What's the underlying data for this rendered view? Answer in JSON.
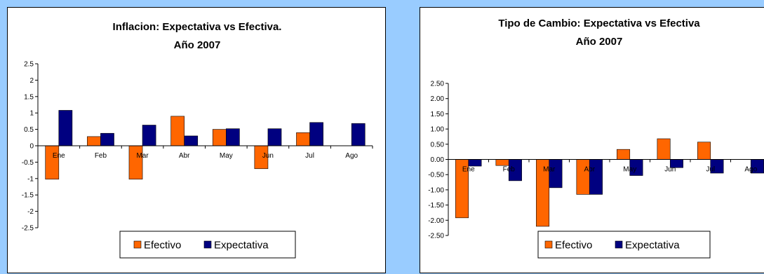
{
  "chart_data": [
    {
      "type": "bar",
      "title": "Inflacion: Expectativa vs Efectiva.",
      "subtitle": "Año 2007",
      "categories": [
        "Ene",
        "Feb",
        "Mar",
        "Abr",
        "May",
        "Jun",
        "Jul",
        "Ago"
      ],
      "series": [
        {
          "name": "Efectivo",
          "color": "#ff6600",
          "values": [
            -1.02,
            0.28,
            -1.02,
            0.9,
            0.5,
            -0.7,
            0.4,
            null
          ]
        },
        {
          "name": "Expectativa",
          "color": "#000080",
          "values": [
            1.08,
            0.38,
            0.63,
            0.3,
            0.52,
            0.52,
            0.71,
            0.68
          ]
        }
      ],
      "yticks": [
        "2.5",
        "2",
        "1.5",
        "1",
        "0.5",
        "0",
        "-0.5",
        "-1",
        "-1.5",
        "-2",
        "-2.5"
      ],
      "ylim": [
        -2.5,
        2.5
      ],
      "grid": false,
      "legend": "bottom"
    },
    {
      "type": "bar",
      "title": "Tipo de Cambio: Expectativa vs Efectiva",
      "subtitle": "Año 2007",
      "categories": [
        "Ene",
        "Feb",
        "Mar",
        "Abr",
        "May",
        "Jun",
        "Jul",
        "Ago"
      ],
      "series": [
        {
          "name": "Efectivo",
          "color": "#ff6600",
          "values": [
            -1.92,
            -0.2,
            -2.2,
            -1.15,
            0.33,
            0.68,
            0.57,
            null
          ]
        },
        {
          "name": "Expectativa",
          "color": "#000080",
          "values": [
            -0.22,
            -0.7,
            -0.93,
            -1.15,
            -0.53,
            -0.27,
            -0.45,
            -0.45
          ]
        }
      ],
      "yticks": [
        "2.50",
        "2.00",
        "1.50",
        "1.00",
        "0.50",
        "0.00",
        "-0.50",
        "-1.00",
        "-1.50",
        "-2.00",
        "-2.50"
      ],
      "ylim": [
        -2.5,
        2.5
      ],
      "grid": false,
      "legend": "bottom"
    }
  ]
}
